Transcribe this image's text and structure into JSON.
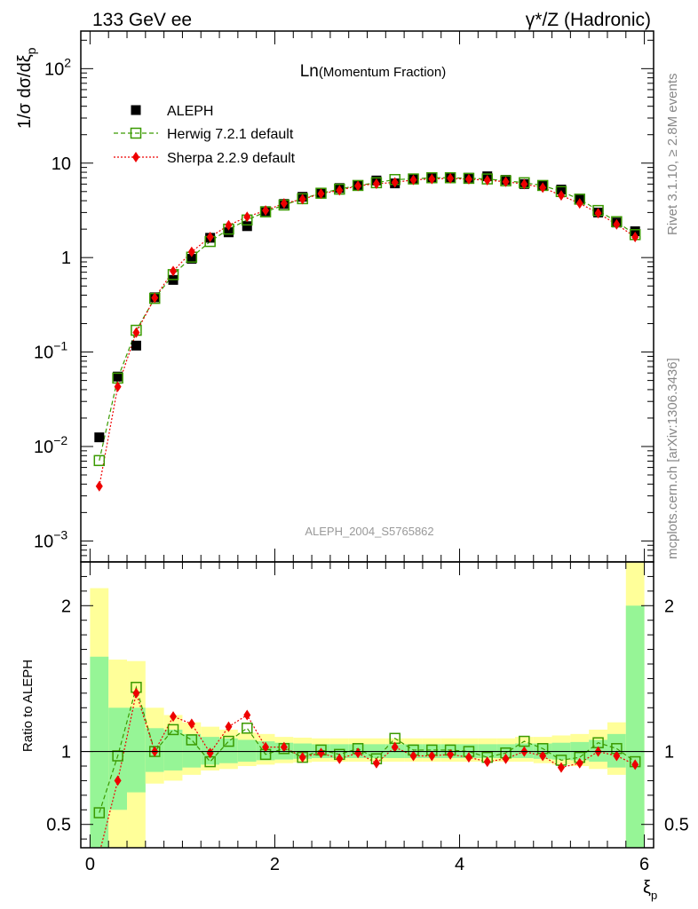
{
  "header": {
    "left": "133 GeV ee",
    "right": "γ*/Z (Hadronic)"
  },
  "plot_title": "Ln(Momentum Fraction)",
  "analysis_id": "ALEPH_2004_S5765862",
  "side_text": {
    "rivet": "Rivet 3.1.10, ≥ 2.8M events",
    "mcplots": "mcplots.cern.ch [arXiv:1306.3436]"
  },
  "colors": {
    "data": "#000000",
    "herwig": "#3a9a00",
    "sherpa": "#ee0000",
    "band_inner": "#96f596",
    "band_outer": "#ffff99"
  },
  "chart_data": [
    {
      "type": "scatter",
      "yscale": "log",
      "ylabel": "1/σ dσ/dξp",
      "ylim": [
        0.0006,
        250
      ],
      "xlim": [
        -0.1,
        6.1
      ],
      "y_ticks": [
        {
          "v": 0.001,
          "base": "10",
          "exp": "−3"
        },
        {
          "v": 0.01,
          "base": "10",
          "exp": "−2"
        },
        {
          "v": 0.1,
          "base": "10",
          "exp": "−1"
        },
        {
          "v": 1,
          "base": "1",
          "exp": ""
        },
        {
          "v": 10,
          "base": "10",
          "exp": ""
        },
        {
          "v": 100,
          "base": "10",
          "exp": "2"
        }
      ],
      "legend": {
        "position": "top-left",
        "entries": [
          "ALEPH",
          "Herwig 7.2.1 default",
          "Sherpa 2.2.9 default"
        ]
      },
      "x": [
        0.1,
        0.3,
        0.5,
        0.7,
        0.9,
        1.1,
        1.3,
        1.5,
        1.7,
        1.9,
        2.1,
        2.3,
        2.5,
        2.7,
        2.9,
        3.1,
        3.3,
        3.5,
        3.7,
        3.9,
        4.1,
        4.3,
        4.5,
        4.7,
        4.9,
        5.1,
        5.3,
        5.5,
        5.7,
        5.9
      ],
      "series": [
        {
          "name": "ALEPH",
          "marker": "square",
          "values": [
            0.0125,
            0.055,
            0.117,
            0.38,
            0.58,
            0.97,
            1.62,
            1.85,
            2.15,
            3.1,
            3.7,
            4.4,
            4.85,
            5.45,
            5.8,
            6.55,
            6.1,
            6.85,
            7.05,
            7.0,
            7.0,
            7.25,
            6.65,
            6.0,
            5.85,
            5.25,
            4.2,
            3.0,
            2.35,
            1.9
          ]
        },
        {
          "name": "Herwig 7.2.1 default",
          "marker": "open-square",
          "line": "dashed",
          "values": [
            0.0071,
            0.053,
            0.17,
            0.37,
            0.66,
            1.01,
            1.48,
            2.0,
            2.5,
            3.05,
            3.6,
            4.2,
            4.8,
            5.3,
            5.8,
            6.2,
            6.7,
            6.8,
            7.0,
            7.0,
            6.9,
            6.8,
            6.5,
            6.2,
            5.8,
            5.0,
            4.15,
            3.15,
            2.4,
            1.75
          ]
        },
        {
          "name": "Sherpa 2.2.9 default",
          "marker": "diamond",
          "line": "dotted",
          "values": [
            0.0038,
            0.043,
            0.161,
            0.375,
            0.72,
            1.15,
            1.65,
            2.2,
            2.7,
            3.15,
            3.75,
            4.15,
            4.75,
            5.15,
            5.75,
            6.05,
            6.25,
            6.65,
            6.8,
            6.9,
            6.75,
            6.6,
            6.35,
            6.0,
            5.5,
            4.55,
            3.75,
            2.95,
            2.25,
            1.65
          ]
        }
      ]
    },
    {
      "type": "scatter",
      "ylabel": "Ratio to ALEPH",
      "xlabel": "ξp",
      "ylim": [
        0.34,
        2.3
      ],
      "xlim": [
        -0.1,
        6.1
      ],
      "x_ticks": [
        0,
        2,
        4,
        6
      ],
      "y_ticks": [
        0.5,
        1,
        2
      ],
      "x": [
        0.1,
        0.3,
        0.5,
        0.7,
        0.9,
        1.1,
        1.3,
        1.5,
        1.7,
        1.9,
        2.1,
        2.3,
        2.5,
        2.7,
        2.9,
        3.1,
        3.3,
        3.5,
        3.7,
        3.9,
        4.1,
        4.3,
        4.5,
        4.7,
        4.9,
        5.1,
        5.3,
        5.5,
        5.7,
        5.9
      ],
      "bin_edges": [
        0,
        0.2,
        0.4,
        0.6,
        0.8,
        1.0,
        1.2,
        1.4,
        1.6,
        1.8,
        2.0,
        2.2,
        2.4,
        2.6,
        2.8,
        3.0,
        3.2,
        3.4,
        3.6,
        3.8,
        4.0,
        4.2,
        4.4,
        4.6,
        4.8,
        5.0,
        5.2,
        5.4,
        5.6,
        5.8,
        6.0
      ],
      "band_inner": [
        [
          0.34,
          1.65
        ],
        [
          0.6,
          1.3
        ],
        [
          0.72,
          1.3
        ],
        [
          0.86,
          1.16
        ],
        [
          0.87,
          1.15
        ],
        [
          0.89,
          1.12
        ],
        [
          0.91,
          1.1
        ],
        [
          0.92,
          1.09
        ],
        [
          0.93,
          1.08
        ],
        [
          0.94,
          1.07
        ],
        [
          0.945,
          1.06
        ],
        [
          0.95,
          1.055
        ],
        [
          0.955,
          1.05
        ],
        [
          0.955,
          1.05
        ],
        [
          0.955,
          1.05
        ],
        [
          0.955,
          1.05
        ],
        [
          0.955,
          1.05
        ],
        [
          0.955,
          1.05
        ],
        [
          0.955,
          1.05
        ],
        [
          0.955,
          1.05
        ],
        [
          0.955,
          1.05
        ],
        [
          0.955,
          1.05
        ],
        [
          0.955,
          1.05
        ],
        [
          0.955,
          1.055
        ],
        [
          0.95,
          1.055
        ],
        [
          0.945,
          1.06
        ],
        [
          0.94,
          1.065
        ],
        [
          0.93,
          1.08
        ],
        [
          0.89,
          1.12
        ],
        [
          0.34,
          2.0
        ]
      ],
      "band_outer": [
        [
          0.34,
          2.12
        ],
        [
          0.34,
          1.63
        ],
        [
          0.34,
          1.62
        ],
        [
          0.78,
          1.3
        ],
        [
          0.8,
          1.25
        ],
        [
          0.84,
          1.2
        ],
        [
          0.87,
          1.17
        ],
        [
          0.88,
          1.15
        ],
        [
          0.9,
          1.13
        ],
        [
          0.91,
          1.12
        ],
        [
          0.92,
          1.1
        ],
        [
          0.925,
          1.095
        ],
        [
          0.93,
          1.09
        ],
        [
          0.93,
          1.09
        ],
        [
          0.93,
          1.09
        ],
        [
          0.93,
          1.09
        ],
        [
          0.93,
          1.09
        ],
        [
          0.93,
          1.09
        ],
        [
          0.93,
          1.09
        ],
        [
          0.93,
          1.09
        ],
        [
          0.93,
          1.09
        ],
        [
          0.93,
          1.09
        ],
        [
          0.93,
          1.09
        ],
        [
          0.93,
          1.1
        ],
        [
          0.92,
          1.1
        ],
        [
          0.91,
          1.11
        ],
        [
          0.9,
          1.12
        ],
        [
          0.88,
          1.15
        ],
        [
          0.84,
          1.2
        ],
        [
          0.34,
          2.3
        ]
      ],
      "series": [
        {
          "name": "Herwig 7.2.1 default",
          "marker": "open-square",
          "line": "dashed",
          "values": [
            0.58,
            0.97,
            1.44,
            1.0,
            1.15,
            1.08,
            0.93,
            1.07,
            1.16,
            0.98,
            1.02,
            0.96,
            1.01,
            0.98,
            1.02,
            0.95,
            1.09,
            1.01,
            1.01,
            1.01,
            1.0,
            0.96,
            0.99,
            1.07,
            1.02,
            0.94,
            0.96,
            1.06,
            1.02,
            0.93
          ]
        },
        {
          "name": "Sherpa 2.2.9 default",
          "marker": "diamond",
          "line": "dotted",
          "values": [
            0.3,
            0.8,
            1.4,
            1.0,
            1.24,
            1.19,
            0.99,
            1.17,
            1.25,
            1.03,
            1.03,
            0.96,
            0.99,
            0.95,
            0.99,
            0.92,
            1.03,
            0.97,
            0.97,
            0.98,
            0.96,
            0.93,
            0.95,
            1.0,
            0.97,
            0.89,
            0.92,
            1.0,
            0.97,
            0.91
          ]
        }
      ]
    }
  ]
}
